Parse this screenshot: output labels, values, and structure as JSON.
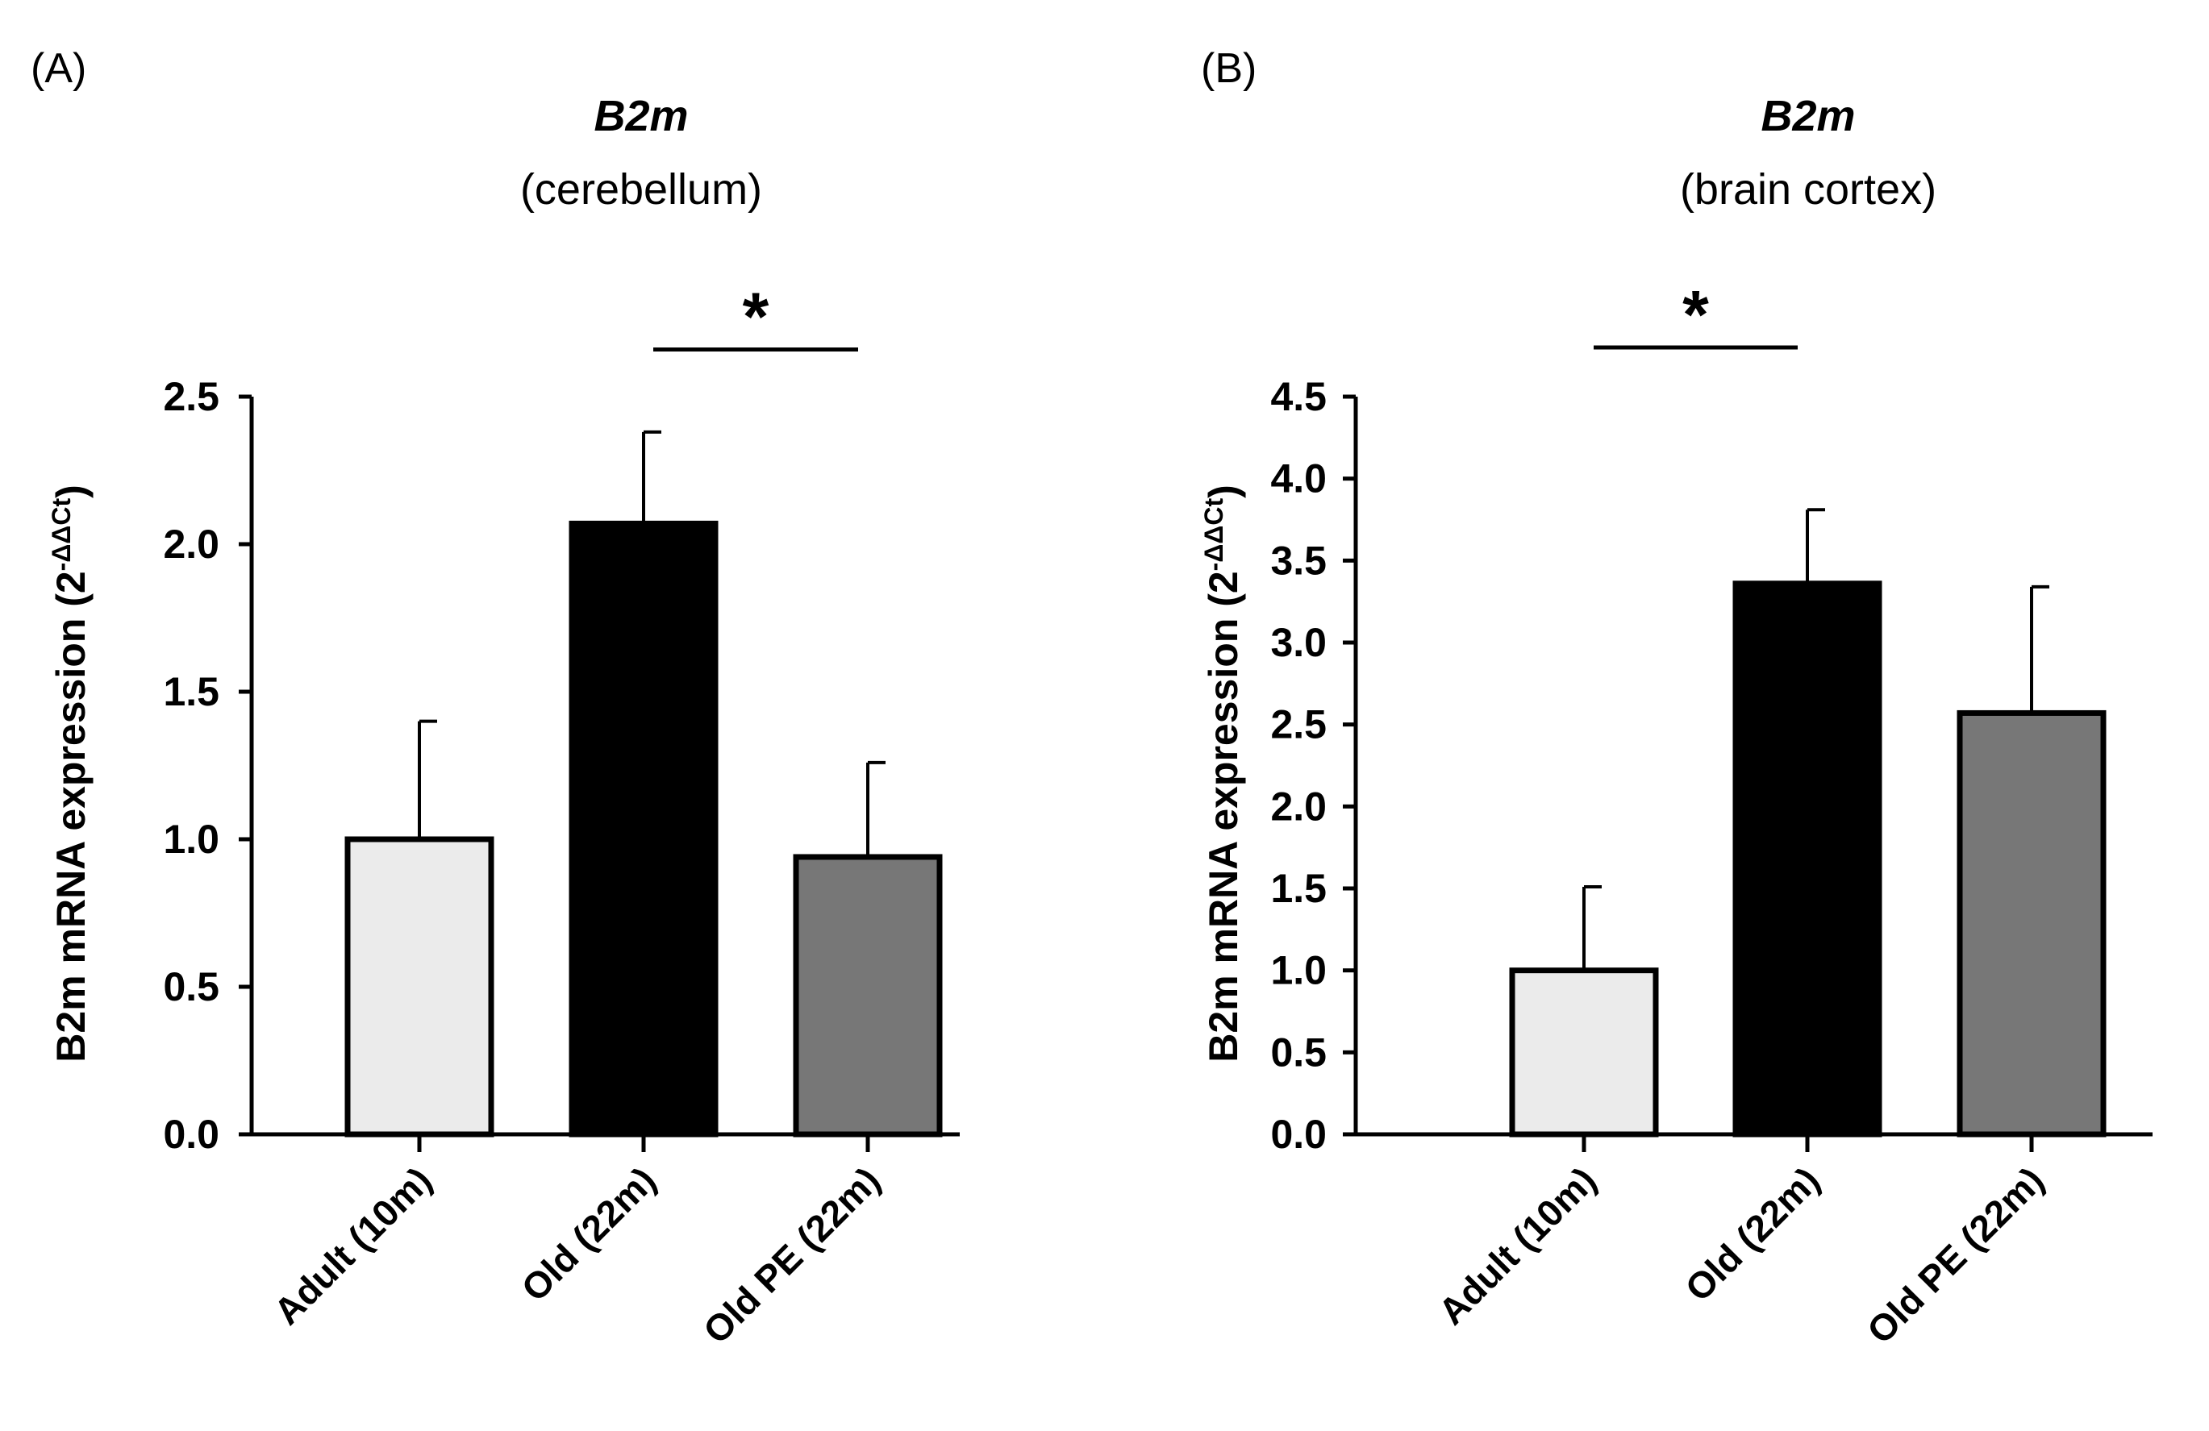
{
  "chart_data": [
    {
      "type": "bar",
      "panel_label": "(A)",
      "title": "B2m",
      "subtitle": "(cerebellum)",
      "ylabel": "B2m mRNA expression (2",
      "ylabel_superscript": "-ΔΔCt",
      "ylabel_close": ")",
      "xlabel": "",
      "ylim": [
        0,
        2.5
      ],
      "yticks": [
        "0.0",
        "0.5",
        "1.0",
        "1.5",
        "2.0",
        "2.5"
      ],
      "categories": [
        "Adult (10m)",
        "Old (22m)",
        "Old PE (22m)"
      ],
      "values": [
        1.0,
        2.07,
        0.94
      ],
      "errors": [
        0.4,
        0.31,
        0.32
      ],
      "bar_colors": [
        "#ebebeb",
        "#000000",
        "#777777"
      ],
      "significance": {
        "from": 1,
        "to": 2,
        "label": "*",
        "y": 2.66
      }
    },
    {
      "type": "bar",
      "panel_label": "(B)",
      "title": "B2m",
      "subtitle": "(brain cortex)",
      "ylabel": "B2m mRNA expression (2",
      "ylabel_superscript": "-ΔΔCt",
      "ylabel_close": ")",
      "xlabel": "",
      "ylim": [
        0,
        4.5
      ],
      "yticks": [
        "0.0",
        "0.5",
        "1.0",
        "1.5",
        "2.0",
        "2.5",
        "3.0",
        "3.5",
        "4.0",
        "4.5"
      ],
      "categories": [
        "Adult (10m)",
        "Old (22m)",
        "Old PE (22m)"
      ],
      "values": [
        1.0,
        3.36,
        2.57
      ],
      "errors": [
        0.51,
        0.45,
        0.77
      ],
      "bar_colors": [
        "#ebebeb",
        "#000000",
        "#777777"
      ],
      "significance": {
        "from": 0,
        "to": 1,
        "label": "*",
        "y": 4.8
      }
    }
  ]
}
